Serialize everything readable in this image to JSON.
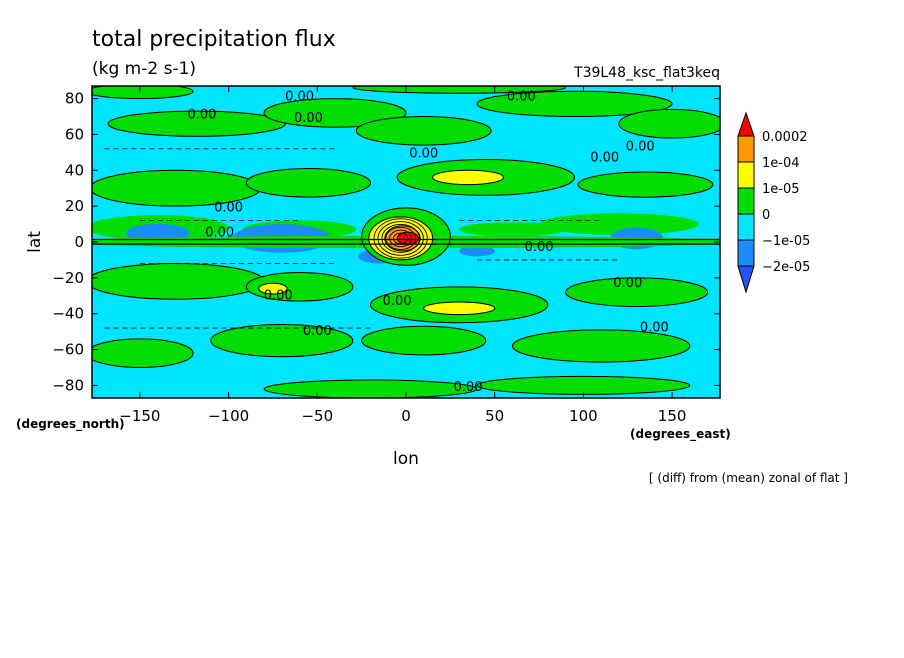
{
  "chart_data": {
    "type": "heatmap",
    "title": "total precipitation flux",
    "units": "(kg m-2 s-1)",
    "run_label": "T39L48_ksc_flat3keq",
    "xlabel": "lon",
    "ylabel": "lat",
    "x_units": "(degrees_east)",
    "y_units": "(degrees_north)",
    "footnote": "[ (diff) from (mean) zonal of flat ]",
    "xlim": [
      -177,
      177
    ],
    "ylim": [
      -87,
      87
    ],
    "x_ticks": [
      -150,
      -100,
      -50,
      0,
      50,
      100,
      150
    ],
    "y_ticks": [
      -80,
      -60,
      -40,
      -20,
      0,
      20,
      40,
      60,
      80
    ],
    "colorbar": {
      "labels": [
        "0.0002",
        "1e-04",
        "1e-05",
        "0",
        "−1e-05",
        "−2e-05"
      ],
      "colors": [
        "#ff0000",
        "#ff9900",
        "#ffff00",
        "#00dd00",
        "#00e5ff",
        "#1a8cff",
        "#2255ff"
      ]
    },
    "contour_labels": [
      {
        "text": "0.00",
        "lon": -60,
        "lat": 79
      },
      {
        "text": "0.00",
        "lon": 65,
        "lat": 79
      },
      {
        "text": "0.00",
        "lon": -115,
        "lat": 69
      },
      {
        "text": "0.00",
        "lon": -55,
        "lat": 67
      },
      {
        "text": "0.00",
        "lon": 10,
        "lat": 47
      },
      {
        "text": "0.00",
        "lon": 112,
        "lat": 45
      },
      {
        "text": "0.00",
        "lon": 132,
        "lat": 51
      },
      {
        "text": "0.00",
        "lon": -100,
        "lat": 17
      },
      {
        "text": "0.00",
        "lon": -105,
        "lat": 3
      },
      {
        "text": "0.00",
        "lon": 75,
        "lat": -5
      },
      {
        "text": "0.00",
        "lon": -72,
        "lat": -32
      },
      {
        "text": "0.00",
        "lon": -5,
        "lat": -35
      },
      {
        "text": "0.00",
        "lon": 125,
        "lat": -25
      },
      {
        "text": "0.00",
        "lon": -50,
        "lat": -52
      },
      {
        "text": "0.00",
        "lon": 140,
        "lat": -50
      },
      {
        "text": "0.00",
        "lon": 35,
        "lat": -83
      }
    ]
  }
}
